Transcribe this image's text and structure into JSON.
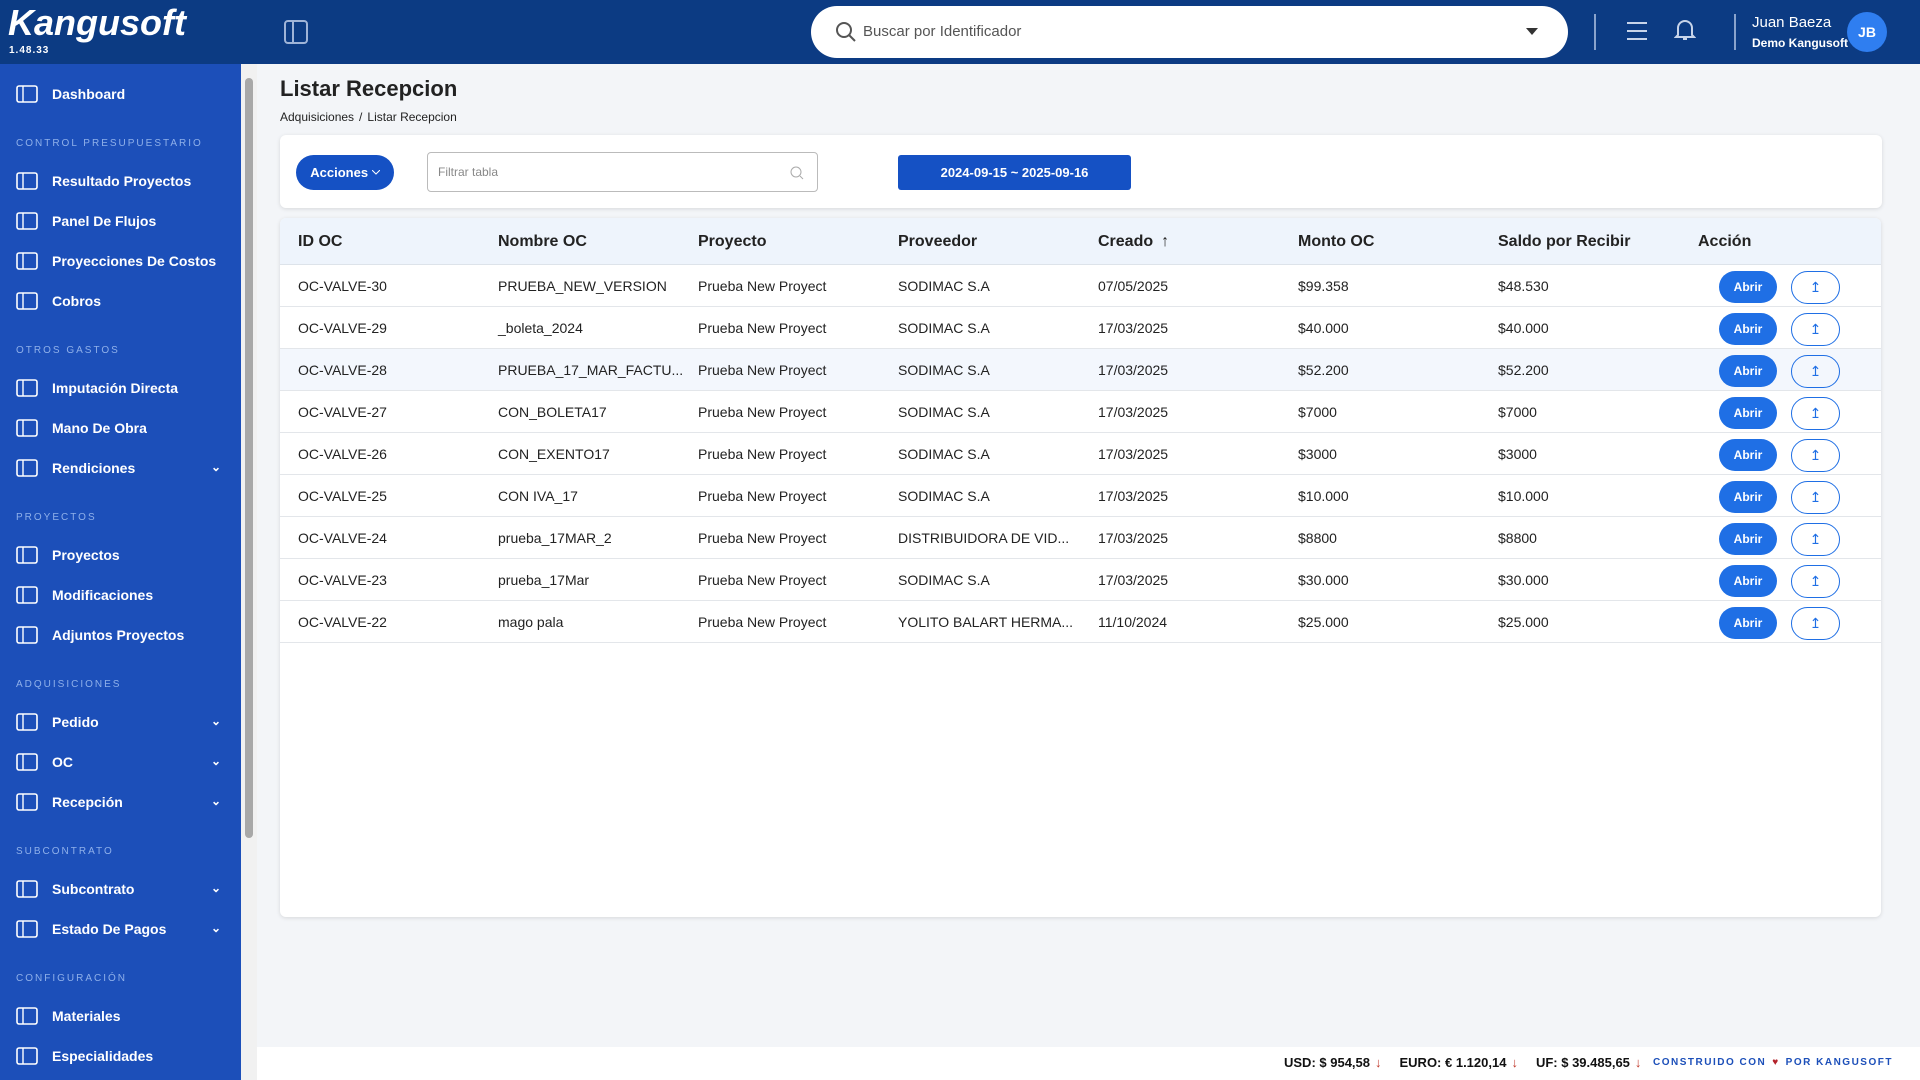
{
  "sidebar": {
    "logo": "Kangusoft",
    "version": "1.48.33",
    "menu": [
      {
        "label": "Dashboard"
      },
      {
        "heading": "CONTROL PRESUPUESTARIO"
      },
      {
        "label": "Resultado Proyectos"
      },
      {
        "label": "Panel De Flujos"
      },
      {
        "label": "Proyecciones De Costos"
      },
      {
        "label": "Cobros"
      },
      {
        "heading": "OTROS GASTOS"
      },
      {
        "label": "Imputación Directa"
      },
      {
        "label": "Mano De Obra"
      },
      {
        "label": "Rendiciones",
        "expandable": true
      },
      {
        "heading": "PROYECTOS"
      },
      {
        "label": "Proyectos"
      },
      {
        "label": "Modificaciones"
      },
      {
        "label": "Adjuntos Proyectos"
      },
      {
        "heading": "ADQUISICIONES"
      },
      {
        "label": "Pedido",
        "expandable": true
      },
      {
        "label": "OC",
        "expandable": true
      },
      {
        "label": "Recepción",
        "expandable": true
      },
      {
        "heading": "SUBCONTRATO"
      },
      {
        "label": "Subcontrato",
        "expandable": true
      },
      {
        "label": "Estado De Pagos",
        "expandable": true
      },
      {
        "heading": "CONFIGURACIÓN"
      },
      {
        "label": "Materiales"
      },
      {
        "label": "Especialidades"
      }
    ]
  },
  "topbar": {
    "search_placeholder": "Buscar por Identificador",
    "user_name": "Juan Baeza",
    "user_company": "Demo Kangusoft",
    "avatar": "JB"
  },
  "page": {
    "title": "Listar Recepcion",
    "breadcrumb": [
      "Adquisiciones",
      "Listar Recepcion"
    ],
    "breadcrumb_separator": "/",
    "actions_button": "Acciones",
    "filter_placeholder": "Filtrar tabla",
    "date_range": "2024-09-15 ~ 2025-09-16"
  },
  "table": {
    "columns": [
      "ID OC",
      "Nombre OC",
      "Proyecto",
      "Proveedor",
      "Creado",
      "Monto OC",
      "Saldo por Recibir",
      "Acción"
    ],
    "sort_column": 4,
    "open_button": "Abrir",
    "rows": [
      [
        "OC-VALVE-30",
        "PRUEBA_NEW_VERSION",
        "Prueba New Proyect",
        "SODIMAC S.A",
        "07/05/2025",
        "$99.358",
        "$48.530"
      ],
      [
        "OC-VALVE-29",
        "_boleta_2024",
        "Prueba New Proyect",
        "SODIMAC S.A",
        "17/03/2025",
        "$40.000",
        "$40.000"
      ],
      [
        "OC-VALVE-28",
        "PRUEBA_17_MAR_FACTU...",
        "Prueba New Proyect",
        "SODIMAC S.A",
        "17/03/2025",
        "$52.200",
        "$52.200"
      ],
      [
        "OC-VALVE-27",
        "CON_BOLETA17",
        "Prueba New Proyect",
        "SODIMAC S.A",
        "17/03/2025",
        "$7000",
        "$7000"
      ],
      [
        "OC-VALVE-26",
        "CON_EXENTO17",
        "Prueba New Proyect",
        "SODIMAC S.A",
        "17/03/2025",
        "$3000",
        "$3000"
      ],
      [
        "OC-VALVE-25",
        "CON IVA_17",
        "Prueba New Proyect",
        "SODIMAC S.A",
        "17/03/2025",
        "$10.000",
        "$10.000"
      ],
      [
        "OC-VALVE-24",
        "prueba_17MAR_2",
        "Prueba New Proyect",
        "DISTRIBUIDORA DE VID...",
        "17/03/2025",
        "$8800",
        "$8800"
      ],
      [
        "OC-VALVE-23",
        "prueba_17Mar",
        "Prueba New Proyect",
        "SODIMAC S.A",
        "17/03/2025",
        "$30.000",
        "$30.000"
      ],
      [
        "OC-VALVE-22",
        "mago pala",
        "Prueba New Proyect",
        "YOLITO BALART HERMA...",
        "11/10/2024",
        "$25.000",
        "$25.000"
      ]
    ]
  },
  "footer": {
    "rates": [
      "USD: $ 954,58",
      "EURO: € 1.120,14",
      "UF: $ 39.485,65"
    ],
    "credit_before": "CONSTRUIDO CON",
    "credit_after": "POR KANGUSOFT"
  }
}
